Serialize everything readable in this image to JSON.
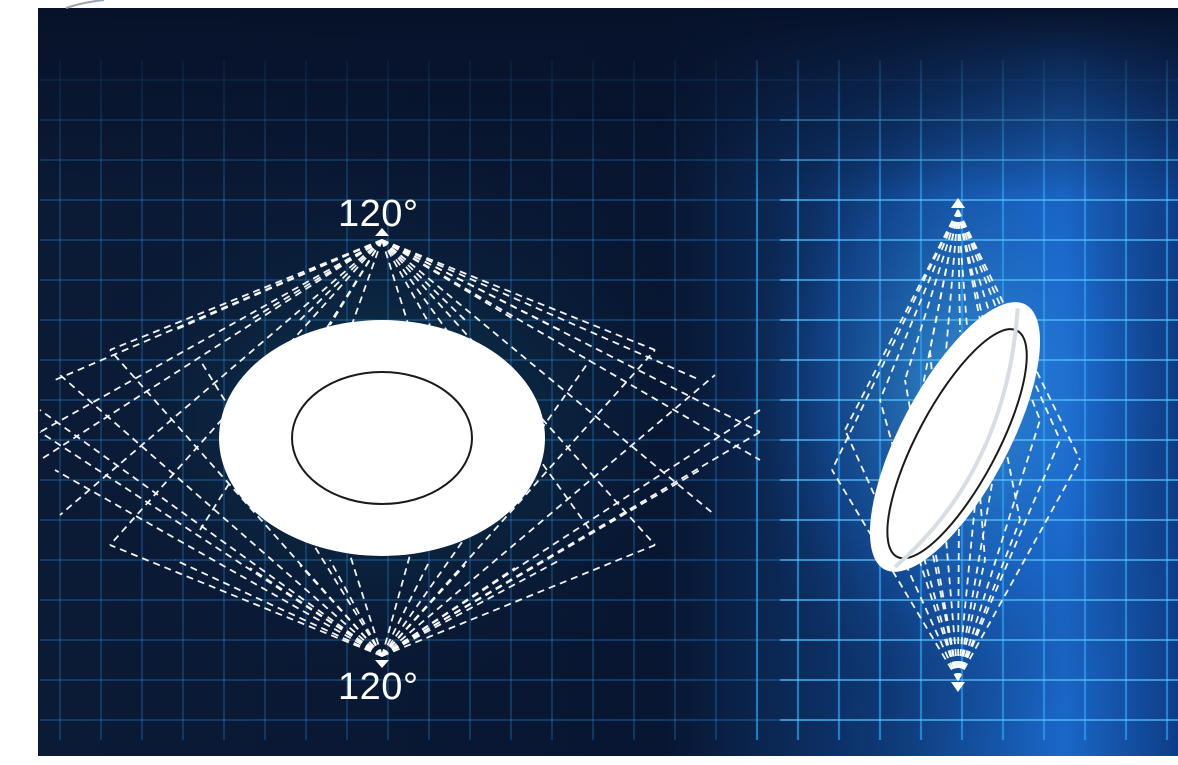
{
  "labels": {
    "top_angle": "120°",
    "bottom_angle": "120°"
  },
  "colors": {
    "background_dark": "#0a1530",
    "grid_glow": "#2f9ff0",
    "beam_lines": "#ffffff",
    "panel_fill": "#ffffff",
    "panel_outline": "#1a1a1a"
  },
  "icons": {
    "left": "emission-pattern-front-view",
    "right": "emission-pattern-tilted-view"
  }
}
